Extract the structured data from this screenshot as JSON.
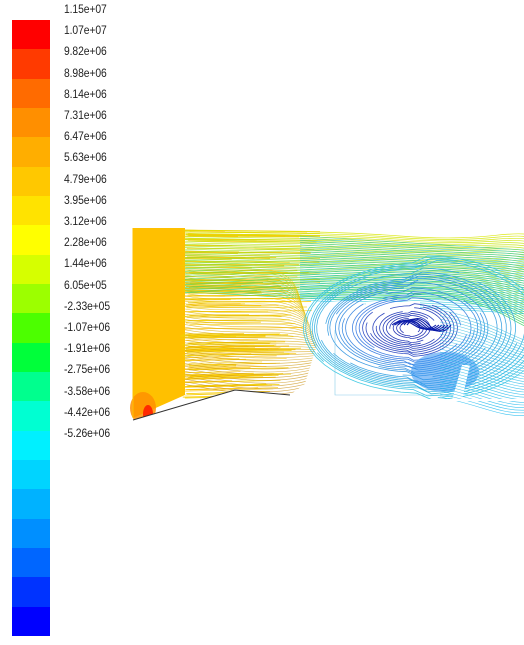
{
  "colorbar": {
    "labels": [
      "1.15e+07",
      "1.07e+07",
      "9.82e+06",
      "8.98e+06",
      "8.14e+06",
      "7.31e+06",
      "6.47e+06",
      "5.63e+06",
      "4.79e+06",
      "3.95e+06",
      "3.12e+06",
      "2.28e+06",
      "1.44e+06",
      "6.05e+05",
      "-2.33e+05",
      "-1.07e+06",
      "-1.91e+06",
      "-2.75e+06",
      "-3.58e+06",
      "-4.42e+06",
      "-5.26e+06"
    ],
    "colors": [
      "#ff0000",
      "#ff3a00",
      "#ff6b00",
      "#ff8f00",
      "#ffae00",
      "#ffc800",
      "#ffe300",
      "#ffff00",
      "#d6ff00",
      "#9cff00",
      "#4cff00",
      "#00ff3a",
      "#00ff8e",
      "#00ffd2",
      "#00f0ff",
      "#00d4ff",
      "#00b2ff",
      "#008fff",
      "#0066ff",
      "#0033ff",
      "#0000ff"
    ]
  },
  "field": {
    "inlet_color": "#ffc000",
    "stagnation_color": "#ff2a00",
    "vortex_color": "#0a1aa8",
    "low_region_color": "#2f8ff0"
  }
}
